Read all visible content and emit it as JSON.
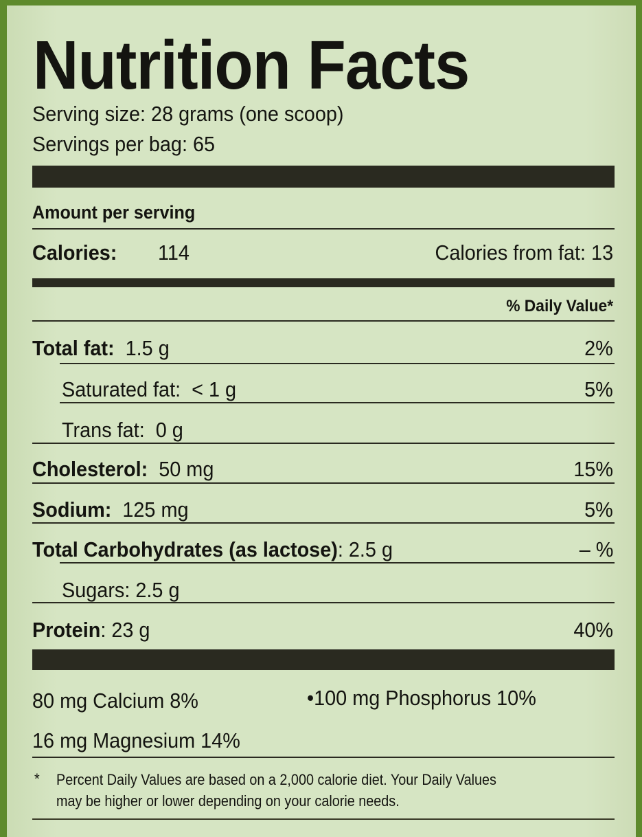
{
  "title": "Nutrition Facts",
  "serving_size": "Serving size:  28 grams (one scoop)",
  "servings_per": "Servings per bag:  65",
  "amount_per_serving": "Amount per serving",
  "calories_label": "Calories:",
  "calories_value": "114",
  "calories_from_fat": "Calories from fat: 13",
  "daily_value_header": "% Daily Value*",
  "nutrients": [
    {
      "label": "Total fat:",
      "amount": "1.5 g",
      "dv": "2%"
    },
    {
      "label": "Saturated fat:",
      "amount": "< 1 g",
      "dv": "5%"
    },
    {
      "label": "Trans fat:",
      "amount": "0 g",
      "dv": ""
    },
    {
      "label": "Cholesterol:",
      "amount": "50 mg",
      "dv": "15%"
    },
    {
      "label": "Sodium:",
      "amount": "125 mg",
      "dv": "5%"
    },
    {
      "label": "Total Carbohydrates (as lactose)",
      "amount": ": 2.5 g",
      "dv": "– %"
    },
    {
      "label": "Sugars:",
      "amount": "2.5 g",
      "dv": ""
    },
    {
      "label": "Protein",
      "amount": ": 23 g",
      "dv": "40%"
    }
  ],
  "minerals": [
    "80 mg Calcium 8%",
    "•100 mg Phosphorus 10%",
    "16 mg Magnesium 14%"
  ],
  "footnote_mark": "*",
  "footnote_line1": "Percent Daily Values are based on a 2,000 calorie diet. Your Daily Values",
  "footnote_line2": "may be higher or lower depending on your calorie needs.",
  "colors": {
    "label_bg": "#d3e2bf",
    "border_green": "#5e8a2c",
    "ink": "#141410"
  }
}
